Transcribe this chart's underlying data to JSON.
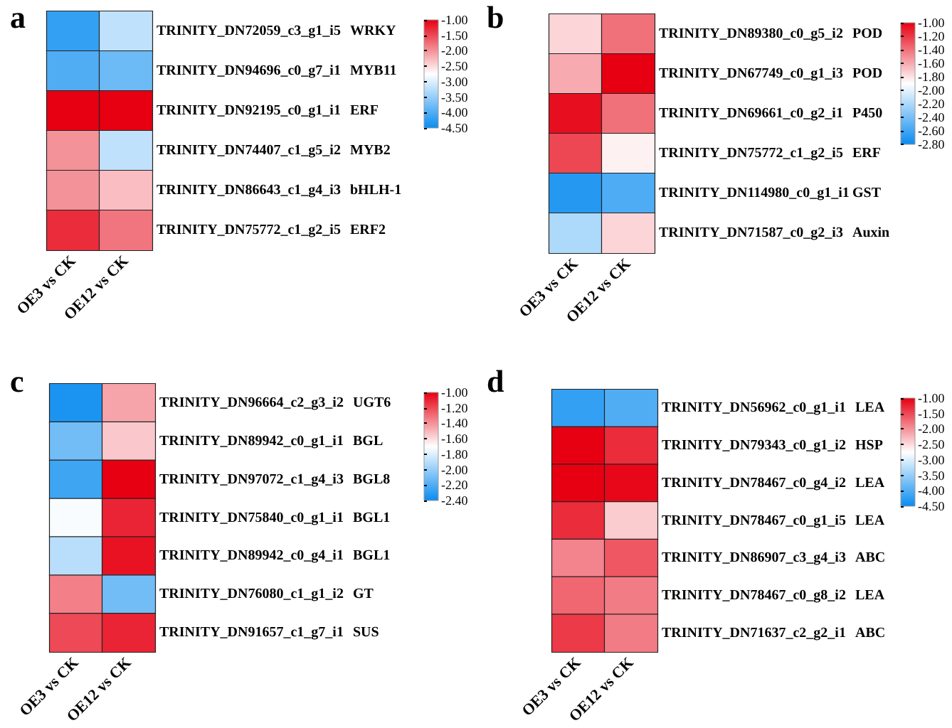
{
  "chart_data": [
    {
      "type": "heatmap",
      "title": "a",
      "categories": [
        "OE3 vs CK",
        "OE12 vs CK"
      ],
      "y_categories": [
        "TRINITY_DN72059_c3_g1_i5",
        "TRINITY_DN94696_c0_g7_i1",
        "TRINITY_DN92195_c0_g1_i1",
        "TRINITY_DN74407_c1_g5_i2",
        "TRINITY_DN86643_c1_g4_i3",
        "TRINITY_DN75772_c1_g2_i5"
      ],
      "y2_categories": [
        "WRKY",
        "MYB11",
        "ERF",
        "MYB2",
        "bHLH-1",
        "ERF2"
      ],
      "cells": [
        [
          -4.2,
          -3.2
        ],
        [
          -4.0,
          -3.8
        ],
        [
          -1.0,
          -1.0
        ],
        [
          -2.0,
          -3.2
        ],
        [
          -2.0,
          -2.3
        ],
        [
          -1.3,
          -1.8
        ]
      ],
      "clim": [
        -4.5,
        -1.0
      ],
      "cticks": [
        {
          "value": -1.0,
          "label": "-1.00"
        },
        {
          "value": -1.5,
          "label": "-1.50"
        },
        {
          "value": -2.0,
          "label": "-2.00"
        },
        {
          "value": -2.5,
          "label": "-2.50"
        },
        {
          "value": -3.0,
          "label": "-3.00"
        },
        {
          "value": -3.5,
          "label": "-3.50"
        },
        {
          "value": -4.0,
          "label": "-4.00"
        },
        {
          "value": -4.5,
          "label": "-4.50"
        }
      ]
    },
    {
      "type": "heatmap",
      "title": "b",
      "categories": [
        "OE3 vs CK",
        "OE12 vs CK"
      ],
      "y_categories": [
        "TRINITY_DN89380_c0_g5_i2",
        "TRINITY_DN67749_c0_g1_i3",
        "TRINITY_DN69661_c0_g2_i1",
        "TRINITY_DN75772_c1_g2_i5",
        "TRINITY_DN114980_c0_g1_i1",
        "TRINITY_DN71587_c0_g2_i3"
      ],
      "y2_categories": [
        "POD",
        "POD",
        "P450",
        "ERF",
        "GST",
        "Auxin"
      ],
      "cells": [
        [
          -1.75,
          -1.4
        ],
        [
          -1.6,
          -1.0
        ],
        [
          -1.05,
          -1.4
        ],
        [
          -1.25,
          -1.85
        ],
        [
          -2.7,
          -2.55
        ],
        [
          -2.2,
          -1.75
        ]
      ],
      "clim": [
        -2.8,
        -1.0
      ],
      "cticks": [
        {
          "value": -1.0,
          "label": "-1.00"
        },
        {
          "value": -1.2,
          "label": "-1.20"
        },
        {
          "value": -1.4,
          "label": "-1.40"
        },
        {
          "value": -1.6,
          "label": "-1.60"
        },
        {
          "value": -1.8,
          "label": "-1.80"
        },
        {
          "value": -2.0,
          "label": "-2.00"
        },
        {
          "value": -2.2,
          "label": "-2.20"
        },
        {
          "value": -2.4,
          "label": "-2.40"
        },
        {
          "value": -2.6,
          "label": "-2.60"
        },
        {
          "value": -2.8,
          "label": "-2.80"
        }
      ]
    },
    {
      "type": "heatmap",
      "title": "c",
      "categories": [
        "OE3 vs CK",
        "OE12 vs CK"
      ],
      "y_categories": [
        "TRINITY_DN96664_c2_g3_i2",
        "TRINITY_DN89942_c0_g1_i1",
        "TRINITY_DN97072_c1_g4_i3",
        "TRINITY_DN75840_c0_g1_i1",
        "TRINITY_DN89942_c0_g4_i1",
        "TRINITY_DN76080_c1_g1_i2",
        "TRINITY_DN91657_c1_g7_i1"
      ],
      "y2_categories": [
        "UGT6",
        "BGL",
        "BGL8",
        "BGL1",
        "BGL1",
        "GT",
        "SUS"
      ],
      "cells": [
        [
          -2.35,
          -1.45
        ],
        [
          -2.1,
          -1.55
        ],
        [
          -2.25,
          -1.0
        ],
        [
          -1.72,
          -1.1
        ],
        [
          -1.9,
          -1.05
        ],
        [
          -1.35,
          -2.1
        ],
        [
          -1.2,
          -1.1
        ]
      ],
      "clim": [
        -2.4,
        -1.0
      ],
      "cticks": [
        {
          "value": -1.0,
          "label": "-1.00"
        },
        {
          "value": -1.2,
          "label": "-1.20"
        },
        {
          "value": -1.4,
          "label": "-1.40"
        },
        {
          "value": -1.6,
          "label": "-1.60"
        },
        {
          "value": -1.8,
          "label": "-1.80"
        },
        {
          "value": -2.0,
          "label": "-2.00"
        },
        {
          "value": -2.2,
          "label": "-2.20"
        },
        {
          "value": -2.4,
          "label": "-2.40"
        }
      ]
    },
    {
      "type": "heatmap",
      "title": "d",
      "categories": [
        "OE3 vs CK",
        "OE12 vs CK"
      ],
      "y_categories": [
        "TRINITY_DN56962_c0_g1_i1",
        "TRINITY_DN79343_c0_g1_i2",
        "TRINITY_DN78467_c0_g4_i2",
        "TRINITY_DN78467_c0_g1_i5",
        "TRINITY_DN86907_c3_g4_i3",
        "TRINITY_DN78467_c0_g8_i2",
        "TRINITY_DN71637_c2_g2_i1"
      ],
      "y2_categories": [
        "LEA",
        "HSP",
        "LEA",
        "LEA",
        "ABC",
        "LEA",
        "ABC"
      ],
      "cells": [
        [
          -4.2,
          -4.0
        ],
        [
          -1.0,
          -1.3
        ],
        [
          -1.0,
          -1.05
        ],
        [
          -1.3,
          -2.4
        ],
        [
          -1.9,
          -1.6
        ],
        [
          -1.7,
          -1.85
        ],
        [
          -1.4,
          -1.85
        ]
      ],
      "clim": [
        -4.5,
        -1.0
      ],
      "cticks": [
        {
          "value": -1.0,
          "label": "-1.00"
        },
        {
          "value": -1.5,
          "label": "-1.50"
        },
        {
          "value": -2.0,
          "label": "-2.00"
        },
        {
          "value": -2.5,
          "label": "-2.50"
        },
        {
          "value": -3.0,
          "label": "-3.00"
        },
        {
          "value": -3.5,
          "label": "-3.50"
        },
        {
          "value": -4.0,
          "label": "-4.00"
        },
        {
          "value": -4.5,
          "label": "-4.50"
        }
      ]
    }
  ]
}
